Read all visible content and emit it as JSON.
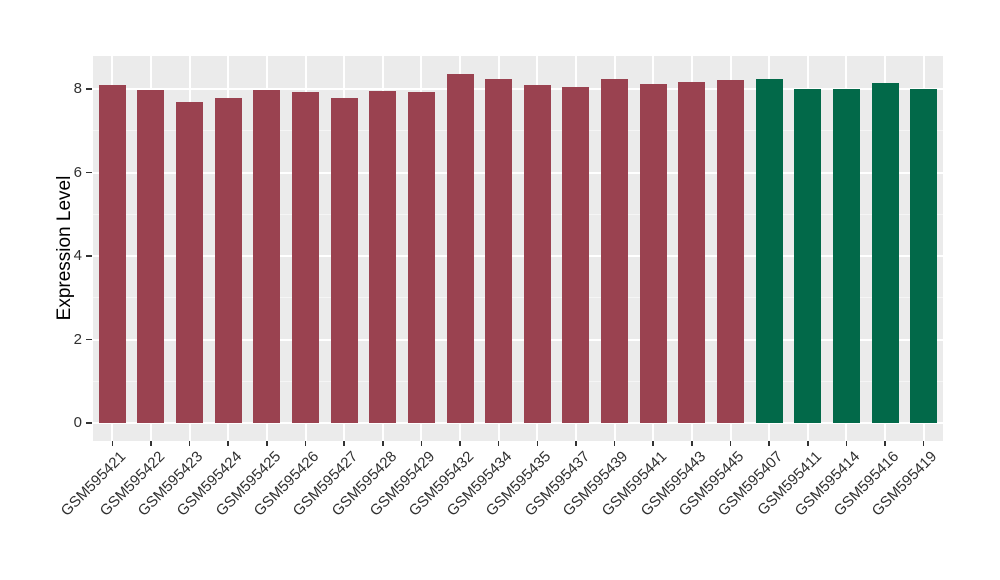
{
  "chart_data": {
    "type": "bar",
    "title": "",
    "xlabel": "",
    "ylabel": "Expression Level",
    "categories": [
      "GSM595421",
      "GSM595422",
      "GSM595423",
      "GSM595424",
      "GSM595425",
      "GSM595426",
      "GSM595427",
      "GSM595428",
      "GSM595429",
      "GSM595432",
      "GSM595434",
      "GSM595435",
      "GSM595437",
      "GSM595439",
      "GSM595441",
      "GSM595443",
      "GSM595445",
      "GSM595407",
      "GSM595411",
      "GSM595414",
      "GSM595416",
      "GSM595419"
    ],
    "values": [
      8.1,
      7.98,
      7.7,
      7.79,
      7.97,
      7.93,
      7.79,
      7.96,
      7.93,
      8.36,
      8.24,
      8.1,
      8.05,
      8.24,
      8.12,
      8.18,
      8.22,
      8.25,
      7.99,
      7.99,
      8.15,
      8.0
    ],
    "bar_groups": [
      "a",
      "a",
      "a",
      "a",
      "a",
      "a",
      "a",
      "a",
      "a",
      "a",
      "a",
      "a",
      "a",
      "a",
      "a",
      "a",
      "a",
      "b",
      "b",
      "b",
      "b",
      "b"
    ],
    "group_colors": {
      "a": "#9A4250",
      "b": "#026949"
    },
    "yticks": [
      0,
      2,
      4,
      6,
      8
    ],
    "yticks_minor": [
      1,
      3,
      5,
      7
    ],
    "ylim": [
      0,
      8.78
    ],
    "grid": "major and minor horizontal white lines, vertical white line per category",
    "legend": false
  }
}
